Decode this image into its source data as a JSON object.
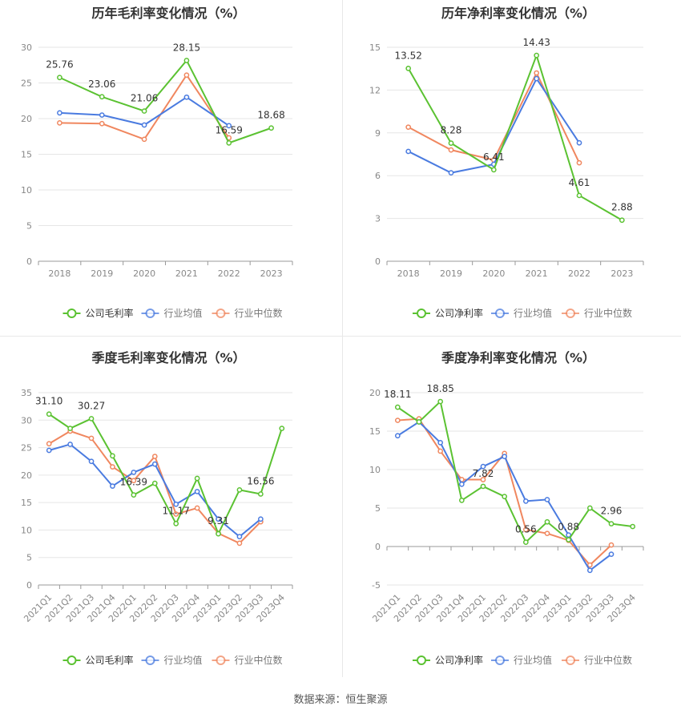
{
  "source_text": "数据来源：恒生聚源",
  "colors": {
    "company": "#5bc232",
    "industry_avg": "#4a7be0",
    "industry_median": "#f0875f",
    "grid": "#e6e6e6",
    "axis_text": "#888888",
    "title": "#333333"
  },
  "chart_data": [
    {
      "type": "line",
      "title": "历年毛利率变化情况（%）",
      "categories": [
        "2018",
        "2019",
        "2020",
        "2021",
        "2022",
        "2023"
      ],
      "ylim": [
        0,
        30
      ],
      "yticks": [
        0,
        5,
        10,
        15,
        20,
        25,
        30
      ],
      "rotate_x": false,
      "grid": true,
      "legend_position": "bottom",
      "series": [
        {
          "name": "公司毛利率",
          "key": "company",
          "values": [
            25.76,
            23.06,
            21.06,
            28.15,
            16.59,
            18.68
          ],
          "labels": [
            "25.76",
            "23.06",
            "21.06",
            "28.15",
            "16.59",
            "18.68"
          ]
        },
        {
          "name": "行业均值",
          "key": "industry_avg",
          "values": [
            20.8,
            20.5,
            19.1,
            23.0,
            19.0,
            null
          ]
        },
        {
          "name": "行业中位数",
          "key": "industry_median",
          "values": [
            19.4,
            19.3,
            17.1,
            26.1,
            17.3,
            null
          ]
        }
      ]
    },
    {
      "type": "line",
      "title": "历年净利率变化情况（%）",
      "categories": [
        "2018",
        "2019",
        "2020",
        "2021",
        "2022",
        "2023"
      ],
      "ylim": [
        0,
        15
      ],
      "yticks": [
        0,
        3,
        6,
        9,
        12,
        15
      ],
      "rotate_x": false,
      "grid": true,
      "legend_position": "bottom",
      "series": [
        {
          "name": "公司净利率",
          "key": "company",
          "values": [
            13.52,
            8.28,
            6.41,
            14.43,
            4.61,
            2.88
          ],
          "labels": [
            "13.52",
            "8.28",
            "6.41",
            "14.43",
            "4.61",
            "2.88"
          ]
        },
        {
          "name": "行业均值",
          "key": "industry_avg",
          "values": [
            7.7,
            6.2,
            6.8,
            12.8,
            8.3,
            null
          ]
        },
        {
          "name": "行业中位数",
          "key": "industry_median",
          "values": [
            9.4,
            7.8,
            7.1,
            13.2,
            6.9,
            null
          ]
        }
      ]
    },
    {
      "type": "line",
      "title": "季度毛利率变化情况（%）",
      "categories": [
        "2021Q1",
        "2021Q2",
        "2021Q3",
        "2021Q4",
        "2022Q1",
        "2022Q2",
        "2022Q3",
        "2022Q4",
        "2023Q1",
        "2023Q2",
        "2023Q3",
        "2023Q4"
      ],
      "ylim": [
        0,
        35
      ],
      "yticks": [
        0,
        5,
        10,
        15,
        20,
        25,
        30,
        35
      ],
      "rotate_x": true,
      "grid": true,
      "legend_position": "bottom",
      "series": [
        {
          "name": "公司毛利率",
          "key": "company",
          "values": [
            31.1,
            28.5,
            30.27,
            23.5,
            16.39,
            18.5,
            11.17,
            19.4,
            9.31,
            17.3,
            16.56,
            28.5
          ],
          "labels": [
            "31.10",
            "",
            "30.27",
            "",
            "16.39",
            "",
            "11.17",
            "",
            "9.31",
            "",
            "16.56",
            ""
          ]
        },
        {
          "name": "行业均值",
          "key": "industry_avg",
          "values": [
            24.5,
            25.6,
            22.5,
            18.0,
            20.5,
            22.0,
            14.7,
            17.0,
            12.0,
            8.8,
            12.0,
            null
          ]
        },
        {
          "name": "行业中位数",
          "key": "industry_median",
          "values": [
            25.7,
            28.0,
            26.7,
            21.5,
            19.0,
            23.4,
            12.9,
            14.0,
            9.4,
            7.6,
            11.5,
            null
          ]
        }
      ]
    },
    {
      "type": "line",
      "title": "季度净利率变化情况（%）",
      "categories": [
        "2021Q1",
        "2021Q2",
        "2021Q3",
        "2021Q4",
        "2022Q1",
        "2022Q2",
        "2022Q3",
        "2022Q4",
        "2023Q1",
        "2023Q2",
        "2023Q3",
        "2023Q4"
      ],
      "ylim": [
        -5,
        20
      ],
      "yticks": [
        -5,
        0,
        5,
        10,
        15,
        20
      ],
      "rotate_x": true,
      "grid": true,
      "legend_position": "bottom",
      "series": [
        {
          "name": "公司净利率",
          "key": "company",
          "values": [
            18.11,
            16.2,
            18.85,
            6.0,
            7.82,
            6.5,
            0.56,
            3.2,
            0.88,
            5.0,
            2.96,
            2.6
          ],
          "labels": [
            "18.11",
            "",
            "18.85",
            "",
            "7.82",
            "",
            "0.56",
            "",
            "0.88",
            "",
            "2.96",
            ""
          ]
        },
        {
          "name": "行业均值",
          "key": "industry_avg",
          "values": [
            14.4,
            16.2,
            13.5,
            8.1,
            10.4,
            11.7,
            5.9,
            6.1,
            1.5,
            -3.1,
            -1.0,
            null
          ]
        },
        {
          "name": "行业中位数",
          "key": "industry_median",
          "values": [
            16.4,
            16.6,
            12.4,
            8.7,
            8.7,
            12.1,
            2.2,
            1.7,
            0.8,
            -2.4,
            0.2,
            null
          ]
        }
      ]
    }
  ]
}
